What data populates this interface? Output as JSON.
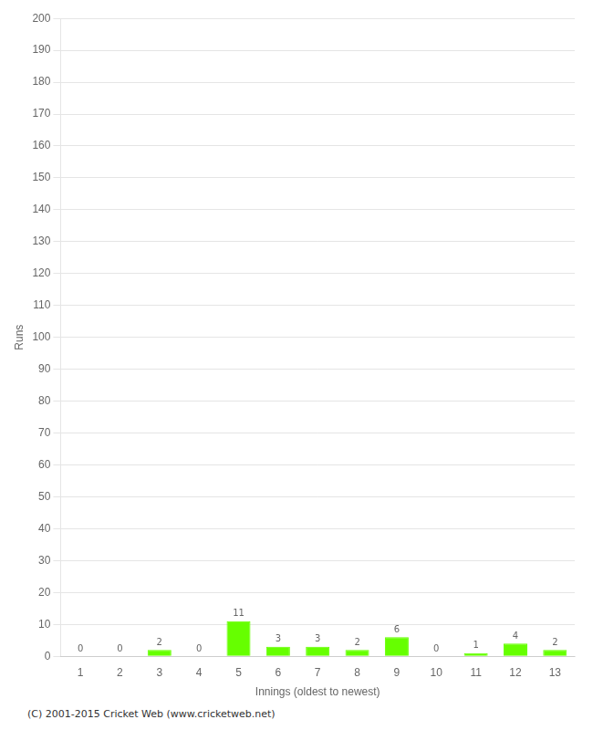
{
  "chart_data": {
    "type": "bar",
    "categories": [
      "1",
      "2",
      "3",
      "4",
      "5",
      "6",
      "7",
      "8",
      "9",
      "10",
      "11",
      "12",
      "13"
    ],
    "values": [
      0,
      0,
      2,
      0,
      11,
      3,
      3,
      2,
      6,
      0,
      1,
      4,
      2
    ],
    "color": "#66ff00",
    "xlabel": "Innings (oldest to newest)",
    "ylabel": "Runs",
    "ylim": [
      0,
      200
    ],
    "yticks": [
      0,
      10,
      20,
      30,
      40,
      50,
      60,
      70,
      80,
      90,
      100,
      110,
      120,
      130,
      140,
      150,
      160,
      170,
      180,
      190,
      200
    ],
    "grid": true,
    "data_labels": true,
    "annotations": [
      "(C) 2001-2015 Cricket Web (www.cricketweb.net)"
    ]
  }
}
